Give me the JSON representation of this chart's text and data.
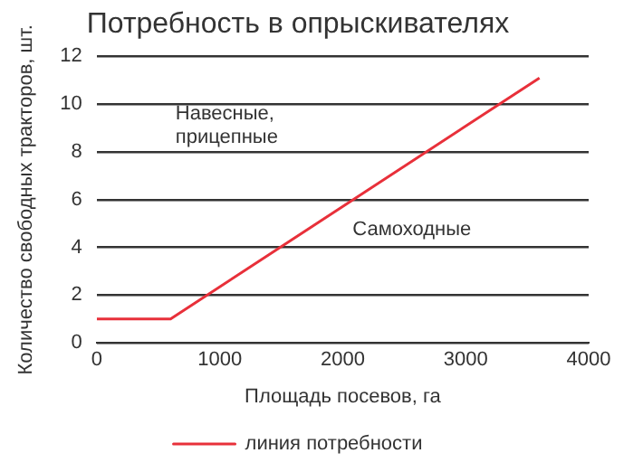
{
  "chart_data": {
    "type": "line",
    "title": "Потребность в опрыскивателях",
    "xlabel": "Площадь посевов, га",
    "ylabel": "Количество свободных тракторов, шт.",
    "x": [
      0,
      600,
      3600
    ],
    "series": [
      {
        "name": "линия потребности",
        "color": "#e8303a",
        "values": [
          1,
          1,
          11.1
        ]
      }
    ],
    "xlim": [
      0,
      4000
    ],
    "xticks": [
      0,
      1000,
      2000,
      3000,
      4000
    ],
    "ylim": [
      0,
      12
    ],
    "yticks": [
      0,
      2,
      4,
      6,
      8,
      10,
      12
    ],
    "grid": "y",
    "legend": "bottom",
    "marker": "none",
    "line_style": "solid",
    "annotations": [
      "Навесные,\nприцепные",
      "Самоходные"
    ]
  }
}
